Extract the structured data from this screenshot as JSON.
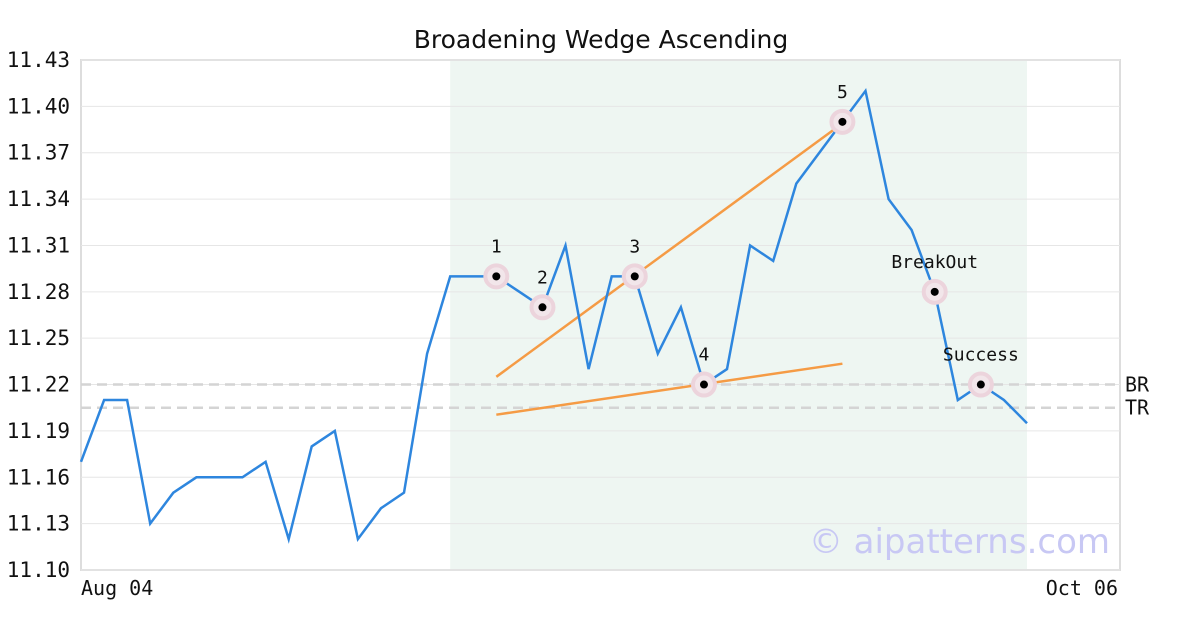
{
  "chart_data": {
    "type": "line",
    "title": "Broadening Wedge Ascending",
    "xlabel": "",
    "ylabel": "",
    "ylim": [
      11.1,
      11.43
    ],
    "yticks": [
      "11.10",
      "11.13",
      "11.16",
      "11.19",
      "11.22",
      "11.25",
      "11.28",
      "11.31",
      "11.34",
      "11.37",
      "11.40",
      "11.43"
    ],
    "x_tick_labels": [
      "Aug 04",
      "Oct 06"
    ],
    "x_count": 42,
    "grid": true,
    "series": [
      {
        "color": "#2e86de",
        "values": [
          11.17,
          11.21,
          11.21,
          11.13,
          11.15,
          11.16,
          11.16,
          11.16,
          11.17,
          11.12,
          11.18,
          11.19,
          11.12,
          11.14,
          11.15,
          11.24,
          11.29,
          11.29,
          11.29,
          11.28,
          11.27,
          11.31,
          11.23,
          11.29,
          11.29,
          11.24,
          11.27,
          11.22,
          11.23,
          11.31,
          11.3,
          11.35,
          11.37,
          11.39,
          11.41,
          11.34,
          11.32,
          11.28,
          11.21,
          11.22,
          11.21,
          11.195
        ]
      }
    ],
    "pattern_region": {
      "x_start": 16,
      "x_end": 41,
      "color": "#eef6f2"
    },
    "trendlines": [
      {
        "color": "#f59b45",
        "x": [
          18,
          33
        ],
        "y": [
          11.225,
          11.389
        ]
      },
      {
        "color": "#f59b45",
        "x": [
          18,
          33
        ],
        "y": [
          11.2005,
          11.2335
        ]
      }
    ],
    "points": [
      {
        "label": "1",
        "x": 18,
        "y": 11.29
      },
      {
        "label": "2",
        "x": 20,
        "y": 11.27
      },
      {
        "label": "3",
        "x": 24,
        "y": 11.29
      },
      {
        "label": "4",
        "x": 27,
        "y": 11.22
      },
      {
        "label": "5",
        "x": 33,
        "y": 11.39
      },
      {
        "label": "BreakOut",
        "x": 37,
        "y": 11.28
      },
      {
        "label": "Success",
        "x": 39,
        "y": 11.22
      }
    ],
    "reference_lines": [
      {
        "label": "BR",
        "y": 11.22
      },
      {
        "label": "TR",
        "y": 11.205
      }
    ],
    "watermark": "© aipatterns.com"
  }
}
